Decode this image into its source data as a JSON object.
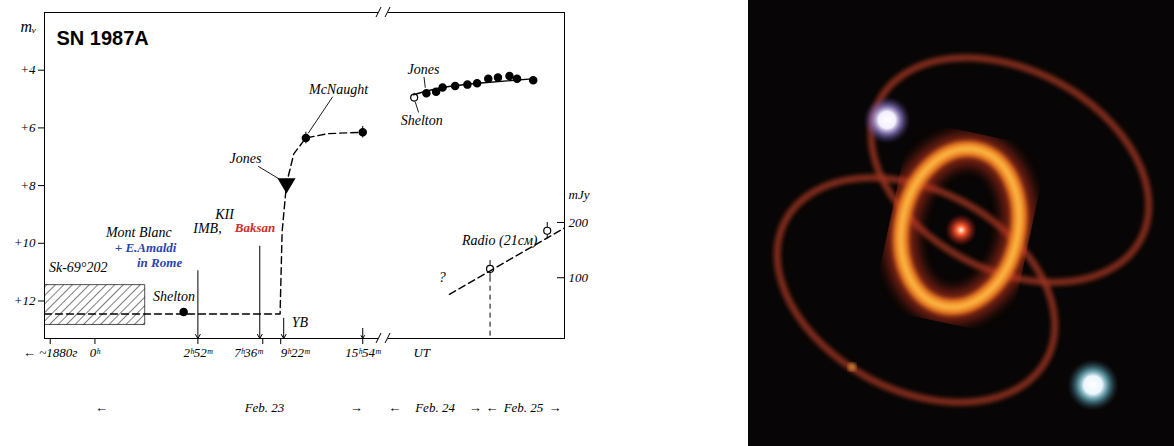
{
  "chart_data": {
    "type": "line",
    "title": "SN 1987A",
    "y_label": "mᵥ",
    "y2_label": "mJy",
    "grid": false,
    "xlim": [
      -6,
      72
    ],
    "xticks": [
      {
        "value": -4,
        "label": "← ~1880г"
      },
      {
        "value": 0,
        "label": "0ʰ"
      },
      {
        "value": 2.867,
        "label": "2ʰ52ᵐ"
      },
      {
        "value": 7.6,
        "label": "7ʰ36ᵐ"
      },
      {
        "value": 9.367,
        "label": "9ʰ22ᵐ"
      },
      {
        "value": 15.9,
        "label": "15ʰ54ᵐ"
      }
    ],
    "ylim": [
      13.3,
      2.0
    ],
    "yticks": [
      {
        "value": 4,
        "label": "+4"
      },
      {
        "value": 6,
        "label": "+6"
      },
      {
        "value": 8,
        "label": "+8"
      },
      {
        "value": 10,
        "label": "+10"
      },
      {
        "value": 12,
        "label": "+12"
      }
    ],
    "y2lim": [
      -10,
      580
    ],
    "y2ticks": [
      100,
      200
    ],
    "series": [
      {
        "name": "Sk-69°202",
        "type": "band",
        "x": [
          -6,
          1.4
        ],
        "low": [
          11.45,
          11.45
        ],
        "high": [
          12.83,
          12.83
        ],
        "label_x": -1.5,
        "label_y": 10.83
      },
      {
        "type": "line",
        "line_style": "dashed",
        "x": [
          -6,
          9.1,
          9.25,
          9.6,
          10.2,
          11.2,
          13.0,
          15.9
        ],
        "values": [
          12.45,
          12.45,
          9.6,
          7.93,
          6.9,
          6.35,
          6.2,
          6.15
        ]
      },
      {
        "name": "Shelton",
        "type": "scatter",
        "marker": "circle",
        "x": [
          2.47
        ],
        "values": [
          12.38
        ],
        "label_x": 2.2,
        "label_y": 11.85
      },
      {
        "name": "Jones",
        "type": "scatter",
        "marker": "triangle-down",
        "x": [
          9.6
        ],
        "values": [
          7.93
        ],
        "label_x": 6.5,
        "label_y": 7.07
      },
      {
        "name": "McNaught",
        "type": "scatter",
        "marker": "circle",
        "x": [
          11.2,
          15.9
        ],
        "values": [
          6.35,
          6.15
        ],
        "errors": [
          0.2,
          0.2
        ],
        "label_x": 13.9,
        "label_y": 4.66
      },
      {
        "name": "Jones",
        "type": "scatter",
        "marker": "circle",
        "x": [
          33.6,
          36.3,
          38.1,
          41.6,
          45.0,
          47.7,
          50.8,
          53.5,
          56.7,
          58.8,
          63.3
        ],
        "values": [
          4.8,
          4.75,
          4.6,
          4.55,
          4.5,
          4.45,
          4.3,
          4.25,
          4.2,
          4.3,
          4.35
        ],
        "label_x": 32.8,
        "label_y": 3.97
      },
      {
        "name": "Shelton",
        "type": "scatter",
        "marker": "circle-open",
        "x": [
          30.2
        ],
        "values": [
          4.95
        ],
        "errors": [
          0.15
        ],
        "label_x": 32.3,
        "label_y": 5.76
      },
      {
        "type": "line",
        "line_style": "solid",
        "x": [
          30,
          38,
          48,
          63
        ],
        "values": [
          4.85,
          4.6,
          4.45,
          4.3
        ]
      },
      {
        "name": "Radio (21см)",
        "type": "scatter",
        "axis": "y2",
        "marker": "circle-open",
        "x": [
          51.3,
          67.2
        ],
        "values": [
          116,
          185
        ],
        "errors": [
          15,
          15
        ],
        "label_x": 54.0,
        "label_y": 167
      },
      {
        "type": "line",
        "axis": "y2",
        "line_style": "dashed",
        "x": [
          40,
          72
        ],
        "values": [
          70,
          190
        ]
      }
    ],
    "annotations": [
      {
        "text": "KII",
        "x": 4.9,
        "y": 9.0
      },
      {
        "text": "IMB,",
        "x": 3.6,
        "y": 9.48
      },
      {
        "text": "Baksan",
        "x": 7.24,
        "y": 9.48,
        "color": "#d42a2a"
      },
      {
        "text": "Mont Blanc",
        "x": 1.22,
        "y": 9.62
      },
      {
        "text": "+ E.Amaldi",
        "x": 1.41,
        "y": 10.14,
        "color": "#2a44b0"
      },
      {
        "text": "in Rome",
        "x": 1.8,
        "y": 10.66,
        "color": "#2a44b0"
      },
      {
        "text": "YB",
        "x": 10.7,
        "y": 12.75
      },
      {
        "text": "?",
        "x": 38,
        "y": 100,
        "axis": "y2"
      },
      {
        "text": "UT",
        "x": 32.3
      }
    ],
    "event_arrows": [
      {
        "x": 2.867,
        "y": 10.95
      },
      {
        "x": 7.6,
        "y": 10.1
      },
      {
        "x": 9.367,
        "y": 12.6
      },
      {
        "x": 15.9,
        "y": 12.95
      }
    ],
    "date_labels": [
      {
        "text": "← Feb. 23 →",
        "x": 0,
        "x2": 15.9
      },
      {
        "text": "← Feb. 24 →",
        "x": 23.0,
        "x2": 49.0
      },
      {
        "text": "← Feb. 25 →",
        "x": 50.0,
        "x2": 71.2
      }
    ]
  }
}
